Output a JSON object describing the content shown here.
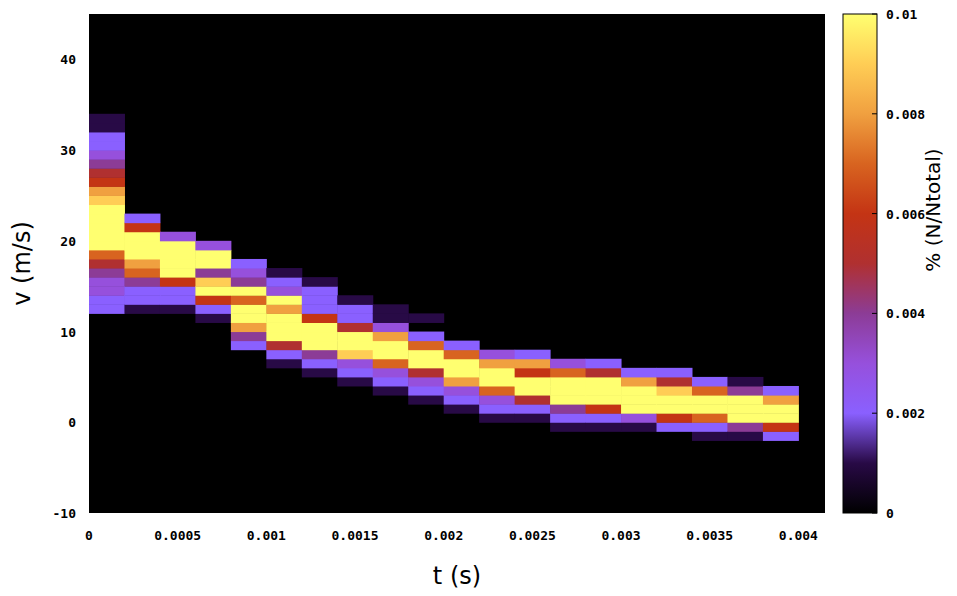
{
  "chart_data": {
    "type": "heatmap",
    "x_label": "t (s)",
    "y_label": "v (m/s)",
    "xlim": [
      0,
      0.00415
    ],
    "ylim": [
      -10,
      45
    ],
    "xticks": [
      0,
      0.0005,
      0.001,
      0.0015,
      0.002,
      0.0025,
      0.003,
      0.0035,
      0.004
    ],
    "yticks": [
      -10,
      0,
      10,
      20,
      30,
      40
    ],
    "grid": false,
    "cell_width": 0.0002,
    "cell_height": 1,
    "cells": [
      [
        0,
        12,
        0.002
      ],
      [
        0,
        13,
        0.002
      ],
      [
        0,
        14,
        0.003
      ],
      [
        0,
        15,
        0.003
      ],
      [
        0,
        16,
        0.004
      ],
      [
        0,
        17,
        0.005
      ],
      [
        0,
        18,
        0.007
      ],
      [
        0,
        19,
        0.01
      ],
      [
        0,
        20,
        0.01
      ],
      [
        0,
        21,
        0.01
      ],
      [
        0,
        22,
        0.01
      ],
      [
        0,
        23,
        0.01
      ],
      [
        0,
        24,
        0.009
      ],
      [
        0,
        25,
        0.008
      ],
      [
        0,
        26,
        0.006
      ],
      [
        0,
        27,
        0.005
      ],
      [
        0,
        28,
        0.004
      ],
      [
        0,
        29,
        0.003
      ],
      [
        0,
        30,
        0.002
      ],
      [
        0,
        31,
        0.002
      ],
      [
        0,
        32,
        0.001
      ],
      [
        0,
        33,
        0.001
      ],
      [
        0.0002,
        12,
        0.001
      ],
      [
        0.0002,
        13,
        0.002
      ],
      [
        0.0002,
        14,
        0.002
      ],
      [
        0.0002,
        15,
        0.004
      ],
      [
        0.0002,
        16,
        0.007
      ],
      [
        0.0002,
        17,
        0.008
      ],
      [
        0.0002,
        18,
        0.01
      ],
      [
        0.0002,
        19,
        0.01
      ],
      [
        0.0002,
        20,
        0.01
      ],
      [
        0.0002,
        21,
        0.006
      ],
      [
        0.0002,
        22,
        0.002
      ],
      [
        0.0004,
        12,
        0.001
      ],
      [
        0.0004,
        13,
        0.002
      ],
      [
        0.0004,
        14,
        0.002
      ],
      [
        0.0004,
        15,
        0.006
      ],
      [
        0.0004,
        16,
        0.01
      ],
      [
        0.0004,
        17,
        0.01
      ],
      [
        0.0004,
        18,
        0.01
      ],
      [
        0.0004,
        19,
        0.01
      ],
      [
        0.0004,
        20,
        0.003
      ],
      [
        0.0006,
        11,
        0.001
      ],
      [
        0.0006,
        12,
        0.002
      ],
      [
        0.0006,
        13,
        0.006
      ],
      [
        0.0006,
        14,
        0.01
      ],
      [
        0.0006,
        15,
        0.009
      ],
      [
        0.0006,
        16,
        0.004
      ],
      [
        0.0006,
        17,
        0.01
      ],
      [
        0.0006,
        18,
        0.01
      ],
      [
        0.0006,
        19,
        0.003
      ],
      [
        0.0008,
        8,
        0.002
      ],
      [
        0.0008,
        9,
        0.004
      ],
      [
        0.0008,
        10,
        0.008
      ],
      [
        0.0008,
        11,
        0.01
      ],
      [
        0.0008,
        12,
        0.01
      ],
      [
        0.0008,
        13,
        0.007
      ],
      [
        0.0008,
        14,
        0.01
      ],
      [
        0.0008,
        15,
        0.004
      ],
      [
        0.0008,
        16,
        0.003
      ],
      [
        0.0008,
        17,
        0.002
      ],
      [
        0.001,
        6,
        0.001
      ],
      [
        0.001,
        7,
        0.002
      ],
      [
        0.001,
        8,
        0.005
      ],
      [
        0.001,
        9,
        0.01
      ],
      [
        0.001,
        10,
        0.01
      ],
      [
        0.001,
        11,
        0.01
      ],
      [
        0.001,
        12,
        0.008
      ],
      [
        0.001,
        13,
        0.01
      ],
      [
        0.001,
        14,
        0.003
      ],
      [
        0.001,
        15,
        0.002
      ],
      [
        0.001,
        16,
        0.001
      ],
      [
        0.0012,
        5,
        0.001
      ],
      [
        0.0012,
        6,
        0.002
      ],
      [
        0.0012,
        7,
        0.004
      ],
      [
        0.0012,
        8,
        0.01
      ],
      [
        0.0012,
        9,
        0.01
      ],
      [
        0.0012,
        10,
        0.01
      ],
      [
        0.0012,
        11,
        0.006
      ],
      [
        0.0012,
        12,
        0.002
      ],
      [
        0.0012,
        13,
        0.002
      ],
      [
        0.0012,
        14,
        0.002
      ],
      [
        0.0012,
        15,
        0.001
      ],
      [
        0.0014,
        4,
        0.001
      ],
      [
        0.0014,
        5,
        0.002
      ],
      [
        0.0014,
        6,
        0.003
      ],
      [
        0.0014,
        7,
        0.009
      ],
      [
        0.0014,
        8,
        0.01
      ],
      [
        0.0014,
        9,
        0.01
      ],
      [
        0.0014,
        10,
        0.005
      ],
      [
        0.0014,
        11,
        0.002
      ],
      [
        0.0014,
        12,
        0.002
      ],
      [
        0.0014,
        13,
        0.001
      ],
      [
        0.0016,
        3,
        0.001
      ],
      [
        0.0016,
        4,
        0.002
      ],
      [
        0.0016,
        5,
        0.003
      ],
      [
        0.0016,
        6,
        0.007
      ],
      [
        0.0016,
        7,
        0.01
      ],
      [
        0.0016,
        8,
        0.01
      ],
      [
        0.0016,
        9,
        0.008
      ],
      [
        0.0016,
        10,
        0.003
      ],
      [
        0.0016,
        11,
        0.001
      ],
      [
        0.0016,
        12,
        0.001
      ],
      [
        0.0018,
        2,
        0.001
      ],
      [
        0.0018,
        3,
        0.002
      ],
      [
        0.0018,
        4,
        0.003
      ],
      [
        0.0018,
        5,
        0.005
      ],
      [
        0.0018,
        6,
        0.01
      ],
      [
        0.0018,
        7,
        0.01
      ],
      [
        0.0018,
        8,
        0.007
      ],
      [
        0.0018,
        9,
        0.002
      ],
      [
        0.0018,
        11,
        0.001
      ],
      [
        0.002,
        1,
        0.001
      ],
      [
        0.002,
        2,
        0.002
      ],
      [
        0.002,
        3,
        0.003
      ],
      [
        0.002,
        4,
        0.008
      ],
      [
        0.002,
        5,
        0.01
      ],
      [
        0.002,
        6,
        0.01
      ],
      [
        0.002,
        7,
        0.007
      ],
      [
        0.002,
        8,
        0.002
      ],
      [
        0.0022,
        0,
        0.001
      ],
      [
        0.0022,
        1,
        0.002
      ],
      [
        0.0022,
        2,
        0.003
      ],
      [
        0.0022,
        3,
        0.007
      ],
      [
        0.0022,
        4,
        0.01
      ],
      [
        0.0022,
        5,
        0.01
      ],
      [
        0.0022,
        6,
        0.008
      ],
      [
        0.0022,
        7,
        0.003
      ],
      [
        0.0024,
        0,
        0.001
      ],
      [
        0.0024,
        1,
        0.002
      ],
      [
        0.0024,
        2,
        0.005
      ],
      [
        0.0024,
        3,
        0.01
      ],
      [
        0.0024,
        4,
        0.01
      ],
      [
        0.0024,
        5,
        0.006
      ],
      [
        0.0024,
        6,
        0.008
      ],
      [
        0.0024,
        7,
        0.002
      ],
      [
        0.0026,
        -1,
        0.001
      ],
      [
        0.0026,
        0,
        0.002
      ],
      [
        0.0026,
        1,
        0.004
      ],
      [
        0.0026,
        2,
        0.01
      ],
      [
        0.0026,
        3,
        0.01
      ],
      [
        0.0026,
        4,
        0.01
      ],
      [
        0.0026,
        5,
        0.007
      ],
      [
        0.0026,
        6,
        0.003
      ],
      [
        0.0028,
        -1,
        0.001
      ],
      [
        0.0028,
        0,
        0.002
      ],
      [
        0.0028,
        1,
        0.006
      ],
      [
        0.0028,
        2,
        0.01
      ],
      [
        0.0028,
        3,
        0.01
      ],
      [
        0.0028,
        4,
        0.01
      ],
      [
        0.0028,
        5,
        0.005
      ],
      [
        0.0028,
        6,
        0.002
      ],
      [
        0.003,
        -1,
        0.001
      ],
      [
        0.003,
        0,
        0.003
      ],
      [
        0.003,
        1,
        0.01
      ],
      [
        0.003,
        2,
        0.01
      ],
      [
        0.003,
        3,
        0.01
      ],
      [
        0.003,
        4,
        0.008
      ],
      [
        0.003,
        5,
        0.002
      ],
      [
        0.0032,
        -1,
        0.002
      ],
      [
        0.0032,
        0,
        0.006
      ],
      [
        0.0032,
        1,
        0.01
      ],
      [
        0.0032,
        2,
        0.01
      ],
      [
        0.0032,
        3,
        0.009
      ],
      [
        0.0032,
        4,
        0.005
      ],
      [
        0.0032,
        5,
        0.002
      ],
      [
        0.0034,
        -2,
        0.001
      ],
      [
        0.0034,
        -1,
        0.002
      ],
      [
        0.0034,
        0,
        0.007
      ],
      [
        0.0034,
        1,
        0.01
      ],
      [
        0.0034,
        2,
        0.01
      ],
      [
        0.0034,
        3,
        0.007
      ],
      [
        0.0034,
        4,
        0.002
      ],
      [
        0.0036,
        -2,
        0.001
      ],
      [
        0.0036,
        -1,
        0.004
      ],
      [
        0.0036,
        0,
        0.01
      ],
      [
        0.0036,
        1,
        0.01
      ],
      [
        0.0036,
        2,
        0.01
      ],
      [
        0.0036,
        3,
        0.004
      ],
      [
        0.0036,
        4,
        0.001
      ],
      [
        0.0038,
        -2,
        0.002
      ],
      [
        0.0038,
        -1,
        0.006
      ],
      [
        0.0038,
        0,
        0.01
      ],
      [
        0.0038,
        1,
        0.01
      ],
      [
        0.0038,
        2,
        0.008
      ],
      [
        0.0038,
        3,
        0.002
      ]
    ],
    "colorbar": {
      "label": "% (N/Ntotal)",
      "range": [
        0,
        0.01
      ],
      "ticks": [
        0,
        0.002,
        0.004,
        0.006,
        0.008,
        0.01
      ]
    }
  }
}
